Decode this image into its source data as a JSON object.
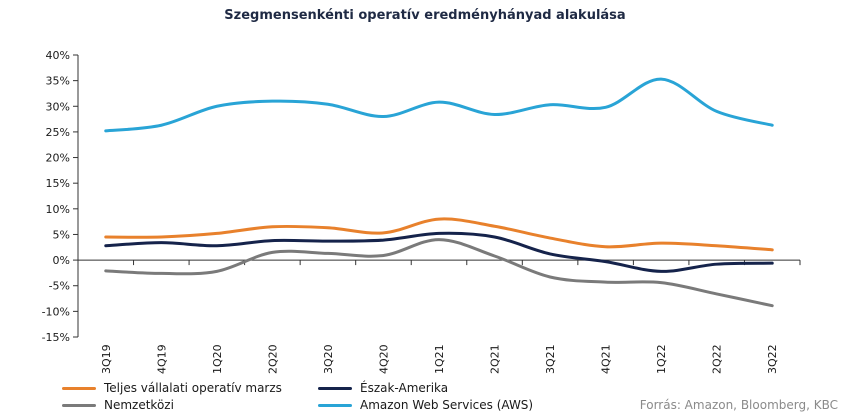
{
  "chart_data": {
    "type": "line",
    "title": "Szegmensenkénti operatív eredményhányad alakulása",
    "xlabel": "",
    "ylabel": "",
    "categories": [
      "3Q19",
      "4Q19",
      "1Q20",
      "2Q20",
      "3Q20",
      "4Q20",
      "1Q21",
      "2Q21",
      "3Q21",
      "4Q21",
      "1Q22",
      "2Q22",
      "3Q22"
    ],
    "ylim": [
      -15,
      40
    ],
    "yticks": [
      -15,
      -10,
      -5,
      0,
      5,
      10,
      15,
      20,
      25,
      30,
      35,
      40
    ],
    "ytick_labels": [
      "-15%",
      "-10%",
      "-5%",
      "0%",
      "5%",
      "10%",
      "15%",
      "20%",
      "25%",
      "30%",
      "35%",
      "40%"
    ],
    "grid": false,
    "legend_placement": "bottom",
    "series": [
      {
        "name": "Teljes vállalati operatív marzs",
        "color": "#e8812c",
        "values": [
          4.5,
          4.5,
          5.2,
          6.5,
          6.3,
          5.3,
          8.0,
          6.6,
          4.3,
          2.6,
          3.3,
          2.8,
          2.0
        ]
      },
      {
        "name": "Észak-Amerika",
        "color": "#15234b",
        "values": [
          2.8,
          3.4,
          2.8,
          3.8,
          3.7,
          3.9,
          5.2,
          4.5,
          1.2,
          -0.3,
          -2.2,
          -0.8,
          -0.6
        ]
      },
      {
        "name": "Nemzetközi",
        "color": "#7a7a7a",
        "values": [
          -2.1,
          -2.6,
          -2.2,
          1.5,
          1.3,
          0.9,
          4.0,
          0.8,
          -3.3,
          -4.3,
          -4.4,
          -6.6,
          -8.9
        ]
      },
      {
        "name": "Amazon Web Services (AWS)",
        "color": "#29a4d6",
        "values": [
          25.2,
          26.3,
          30.0,
          31.0,
          30.4,
          28.0,
          30.8,
          28.4,
          30.3,
          29.8,
          35.3,
          29.0,
          26.3
        ]
      }
    ]
  },
  "source": "Forrás: Amazon, Bloomberg,  KBC"
}
